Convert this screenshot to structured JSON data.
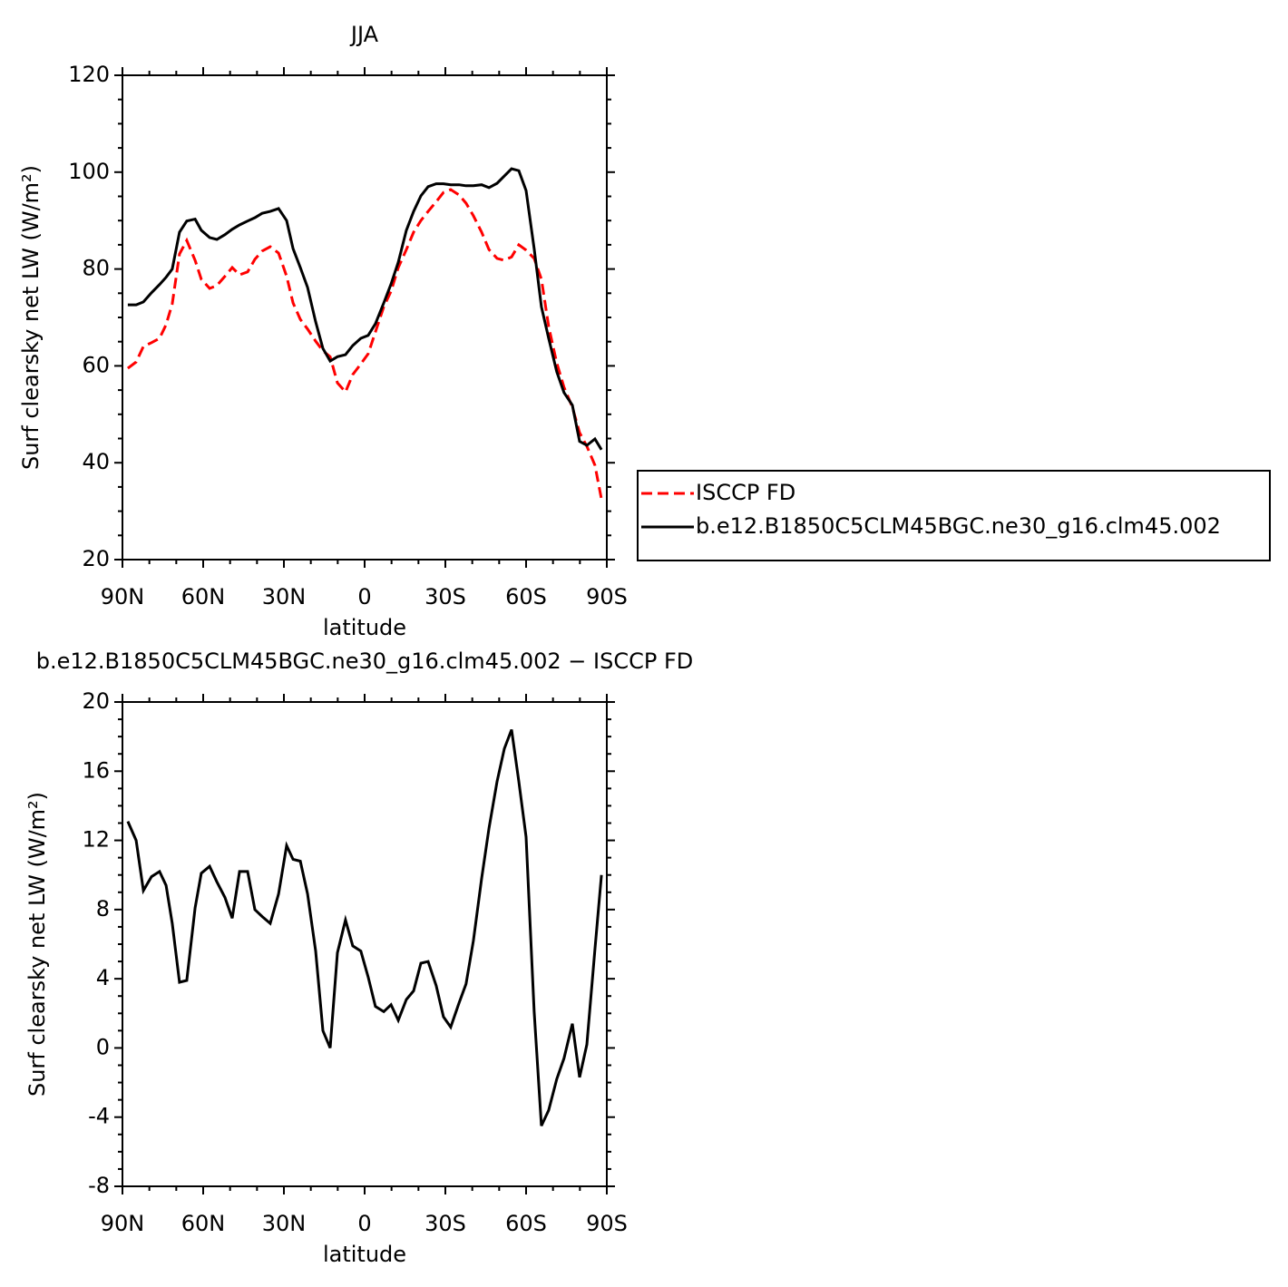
{
  "chart_data": [
    {
      "type": "line",
      "title": "JJA",
      "xlabel": "latitude",
      "ylabel": "Surf clearsky net LW (W/m²)",
      "x": [
        88.0,
        84.9,
        82.2,
        79.2,
        76.2,
        73.8,
        71.5,
        68.8,
        66.1,
        63.0,
        60.7,
        57.6,
        54.9,
        51.9,
        49.2,
        46.5,
        43.5,
        40.8,
        38.1,
        35.1,
        32.0,
        29.0,
        26.6,
        23.9,
        21.2,
        18.2,
        15.5,
        12.8,
        10.1,
        7.1,
        4.4,
        1.4,
        -1.3,
        -4.0,
        -7.1,
        -9.8,
        -12.5,
        -15.5,
        -18.2,
        -20.9,
        -23.6,
        -26.6,
        -29.3,
        -32.0,
        -35.1,
        -37.7,
        -40.4,
        -43.5,
        -46.2,
        -49.2,
        -51.9,
        -54.6,
        -57.3,
        -60.0,
        -63.0,
        -65.7,
        -68.4,
        -71.4,
        -74.1,
        -77.2,
        -79.9,
        -82.6,
        -85.6,
        -88.0
      ],
      "series": [
        {
          "name": "ISCCP FD",
          "color": "#ff0000",
          "linestyle": "dashed",
          "values": [
            59.5,
            60.8,
            64.0,
            64.8,
            65.7,
            68.5,
            72.8,
            83.1,
            85.9,
            81.8,
            77.9,
            76.0,
            76.6,
            78.5,
            80.3,
            78.8,
            79.4,
            82.0,
            83.7,
            84.6,
            83.3,
            78.5,
            73.0,
            69.6,
            67.6,
            65.1,
            63.1,
            61.9,
            56.5,
            54.6,
            58.2,
            60.4,
            62.5,
            67.0,
            72.2,
            75.4,
            80.3,
            84.0,
            87.6,
            90.0,
            91.9,
            93.9,
            95.8,
            96.4,
            95.3,
            93.6,
            91.0,
            87.6,
            84.0,
            82.2,
            81.8,
            82.5,
            85.0,
            83.9,
            82.2,
            77.9,
            68.1,
            60.6,
            55.6,
            51.5,
            46.2,
            43.4,
            39.5,
            32.5
          ]
        },
        {
          "name": "b.e12.B1850C5CLM45BGC.ne30_g16.clm45.002",
          "color": "#000000",
          "linestyle": "solid",
          "values": [
            72.6,
            72.6,
            73.2,
            75.1,
            76.8,
            78.3,
            80.0,
            87.6,
            89.9,
            90.3,
            88.0,
            86.5,
            86.1,
            87.1,
            88.2,
            89.1,
            89.9,
            90.6,
            91.5,
            91.9,
            92.5,
            90.0,
            84.2,
            80.3,
            76.2,
            69.1,
            63.6,
            61.0,
            61.9,
            62.3,
            64.2,
            65.7,
            66.3,
            68.7,
            73.0,
            76.9,
            81.4,
            88.0,
            91.9,
            95.1,
            97.0,
            97.6,
            97.6,
            97.4,
            97.4,
            97.2,
            97.2,
            97.4,
            96.8,
            97.7,
            99.2,
            100.7,
            100.3,
            96.2,
            84.2,
            72.2,
            65.7,
            58.8,
            54.5,
            51.9,
            44.4,
            43.6,
            44.9,
            42.7
          ]
        }
      ],
      "xlim": [
        90,
        -90
      ],
      "xticks": [
        {
          "value": 90,
          "label": "90N"
        },
        {
          "value": 60,
          "label": "60N"
        },
        {
          "value": 30,
          "label": "30N"
        },
        0,
        {
          "value": -30,
          "label": "30S"
        },
        {
          "value": -60,
          "label": "60S"
        },
        {
          "value": -90,
          "label": "90S"
        }
      ],
      "ylim": [
        20,
        120
      ],
      "yticks": [
        20,
        40,
        60,
        80,
        100,
        120
      ],
      "legend": "right"
    },
    {
      "type": "line",
      "title": "b.e12.B1850C5CLM45BGC.ne30_g16.clm45.002 − ISCCP FD",
      "xlabel": "latitude",
      "ylabel": "Surf clearsky net LW (W/m²)",
      "x": [
        88.0,
        84.9,
        82.2,
        79.2,
        76.2,
        73.8,
        71.5,
        68.8,
        66.1,
        63.0,
        60.7,
        57.6,
        54.9,
        51.9,
        49.2,
        46.5,
        43.5,
        40.8,
        38.1,
        35.1,
        32.0,
        29.0,
        26.6,
        23.9,
        21.2,
        18.2,
        15.5,
        12.8,
        10.1,
        7.1,
        4.4,
        1.4,
        -1.3,
        -4.0,
        -7.1,
        -9.8,
        -12.5,
        -15.5,
        -18.2,
        -20.9,
        -23.6,
        -26.6,
        -29.3,
        -32.0,
        -35.1,
        -37.7,
        -40.4,
        -43.5,
        -46.2,
        -49.2,
        -51.9,
        -54.6,
        -57.3,
        -60.0,
        -63.0,
        -65.7,
        -68.4,
        -71.4,
        -74.1,
        -77.2,
        -79.9,
        -82.6,
        -85.6,
        -88.0
      ],
      "color": "#000000",
      "values": [
        13.1,
        12.0,
        9.1,
        9.9,
        10.2,
        9.4,
        7.2,
        3.8,
        3.9,
        8.1,
        10.1,
        10.5,
        9.6,
        8.7,
        7.5,
        10.2,
        10.2,
        8.0,
        7.6,
        7.2,
        8.9,
        11.7,
        10.9,
        10.8,
        8.9,
        5.6,
        1.0,
        0.0,
        5.5,
        7.4,
        5.9,
        5.6,
        4.1,
        2.4,
        2.1,
        2.5,
        1.6,
        2.8,
        3.3,
        4.9,
        5.0,
        3.6,
        1.8,
        1.2,
        2.6,
        3.7,
        6.2,
        9.8,
        12.7,
        15.4,
        17.3,
        18.4,
        15.4,
        12.2,
        2.1,
        -4.5,
        -3.6,
        -1.8,
        -0.6,
        1.4,
        -1.7,
        0.2,
        5.7,
        10.0
      ],
      "xlim": [
        90,
        -90
      ],
      "xticks": [
        {
          "value": 90,
          "label": "90N"
        },
        {
          "value": 60,
          "label": "60N"
        },
        {
          "value": 30,
          "label": "30N"
        },
        0,
        {
          "value": -30,
          "label": "30S"
        },
        {
          "value": -60,
          "label": "60S"
        },
        {
          "value": -90,
          "label": "90S"
        }
      ],
      "ylim": [
        -8,
        20
      ],
      "yticks": [
        -8,
        -4,
        0,
        4,
        8,
        12,
        16,
        20
      ]
    }
  ]
}
